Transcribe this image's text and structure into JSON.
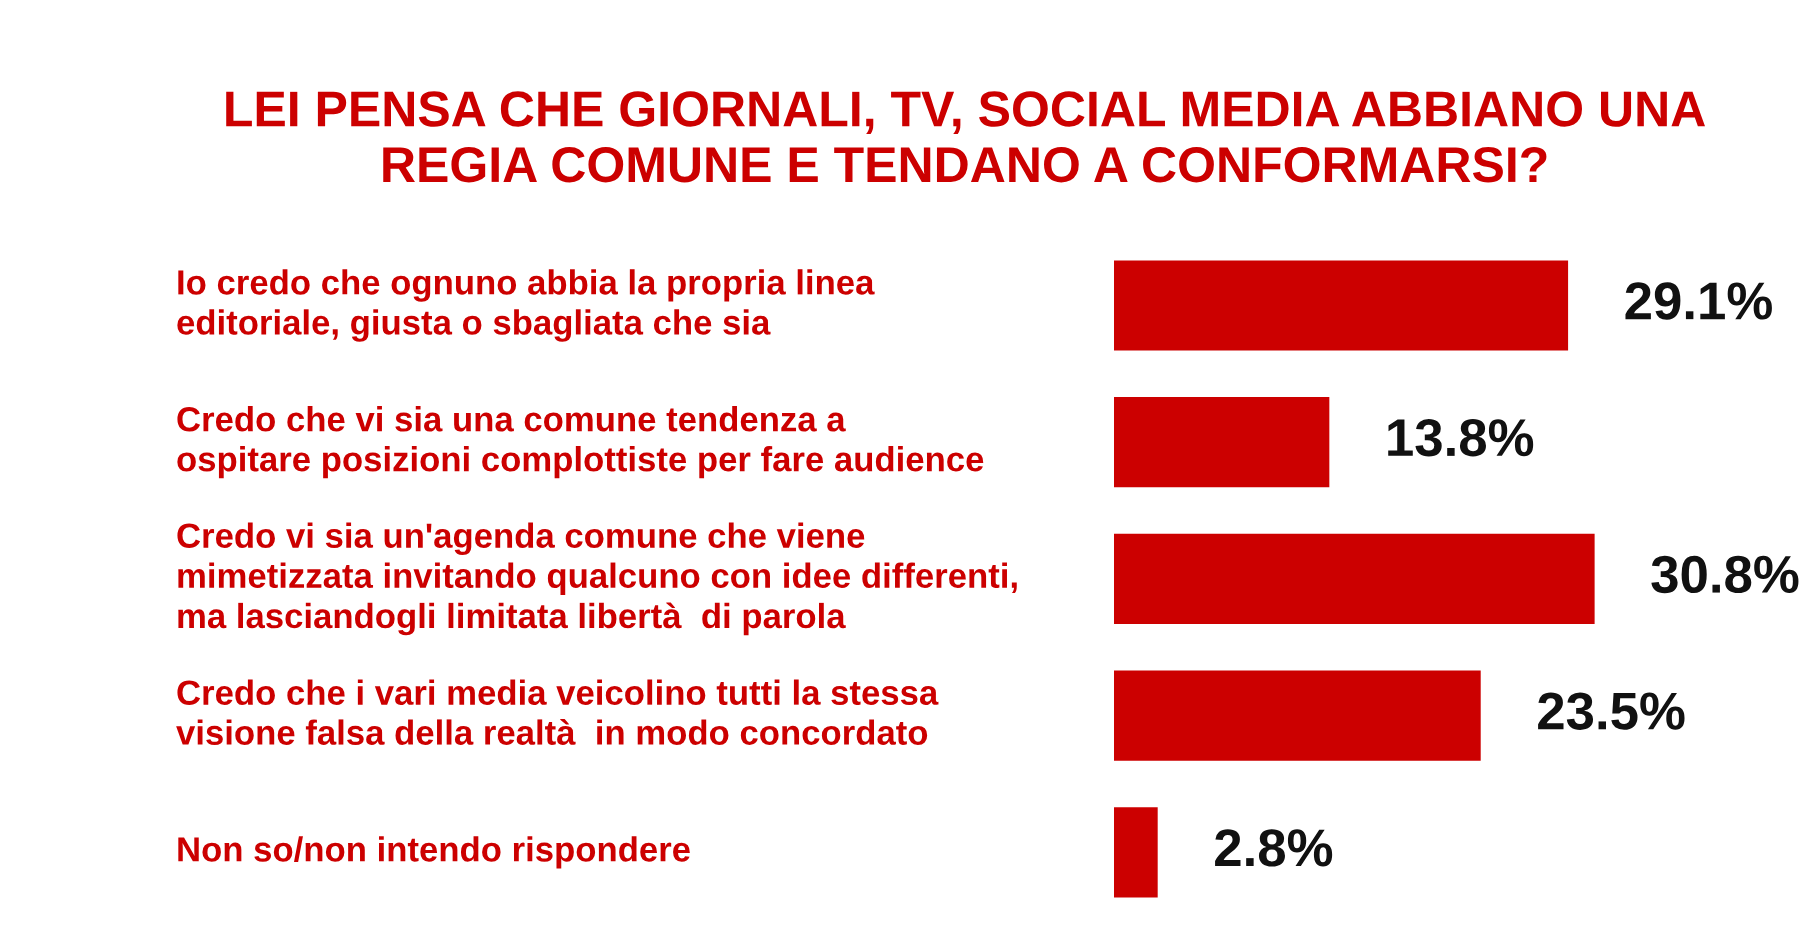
{
  "chart_data": {
    "type": "bar",
    "orientation": "horizontal",
    "title": "LEI PENSA CHE GIORNALI, TV, SOCIAL MEDIA ABBIANO UNA\nREGIA COMUNE E TENDANO A CONFORMARSI?",
    "categories": [
      "Io credo che ognuno abbia la propria linea\neditoriale, giusta o sbagliata che sia",
      "Credo che vi sia una comune tendenza a\nospitare posizioni complottiste per fare audience",
      "Credo vi sia un'agenda comune che viene\nmimetizzata invitando qualcuno con idee differenti,\nma lasciandogli limitata libertà  di parola",
      "Credo che i vari media veicolino tutti la stessa\nvisione falsa della realtà  in modo concordato",
      "Non so/non intendo rispondere"
    ],
    "values": [
      29.1,
      13.8,
      30.8,
      23.5,
      2.8
    ],
    "value_labels": [
      "29.1%",
      "13.8%",
      "30.8%",
      "23.5%",
      "2.8%"
    ],
    "color": "#cc0000",
    "tick_labels": false,
    "grid": false,
    "legend": false
  }
}
